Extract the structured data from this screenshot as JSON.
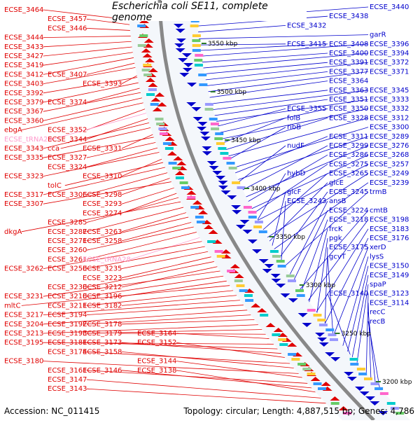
{
  "title": "Escherichia coli SE11, complete genome",
  "footer": {
    "accession": "Accession: NC_011415",
    "summary": "Topology: circular; Length: 4,887,515 bp; Genes: 4,786"
  },
  "colors": {
    "forward": "#e00000",
    "reverse": "#0000cc",
    "trna": "#ff99cc",
    "backbone": "#888888",
    "tick": "#2a7a2a"
  },
  "ticks": [
    "3550 kbp",
    "3500 kbp",
    "3450 kbp",
    "3400 kbp",
    "3350 kbp",
    "3300 kbp",
    "3250 kbp",
    "3200 kbp"
  ],
  "left_labels": [
    {
      "text": "ECSE_3464",
      "kind": "gene",
      "row": 0,
      "col": 0
    },
    {
      "text": "ECSE_3457",
      "kind": "gene",
      "row": 1,
      "col": 1
    },
    {
      "text": "ECSE_3446",
      "kind": "gene",
      "row": 2,
      "col": 1
    },
    {
      "text": "ECSE_3444",
      "kind": "gene",
      "row": 3,
      "col": 0
    },
    {
      "text": "ECSE_3433",
      "kind": "gene",
      "row": 4,
      "col": 0
    },
    {
      "text": "ECSE_3427",
      "kind": "gene",
      "row": 5,
      "col": 0
    },
    {
      "text": "ECSE_3419",
      "kind": "gene",
      "row": 6,
      "col": 0
    },
    {
      "text": "ECSE_3412",
      "kind": "gene",
      "row": 7,
      "col": 0
    },
    {
      "text": "ECSE_3407",
      "kind": "gene",
      "row": 7,
      "col": 1
    },
    {
      "text": "ECSE_3403",
      "kind": "gene",
      "row": 8,
      "col": 0
    },
    {
      "text": "ECSE_3393",
      "kind": "gene",
      "row": 8,
      "col": 2
    },
    {
      "text": "ECSE_3392",
      "kind": "gene",
      "row": 9,
      "col": 0
    },
    {
      "text": "ECSE_3379",
      "kind": "gene",
      "row": 10,
      "col": 0
    },
    {
      "text": "ECSE_3374",
      "kind": "gene",
      "row": 10,
      "col": 1
    },
    {
      "text": "ECSE_3367",
      "kind": "gene",
      "row": 11,
      "col": 0
    },
    {
      "text": "ECSE_3360",
      "kind": "gene",
      "row": 12,
      "col": 0
    },
    {
      "text": "ebgA",
      "kind": "gene",
      "row": 13,
      "col": 0
    },
    {
      "text": "ECSE_3352",
      "kind": "gene",
      "row": 13,
      "col": 1
    },
    {
      "text": "ECSE_tRNA29",
      "kind": "trna",
      "row": 14,
      "col": 0
    },
    {
      "text": "ECSE_3344",
      "kind": "gene",
      "row": 14,
      "col": 1
    },
    {
      "text": "ECSE_3343",
      "kind": "gene",
      "row": 15,
      "col": 0
    },
    {
      "text": "cca",
      "kind": "gene",
      "row": 15,
      "col": 1
    },
    {
      "text": "ECSE_3331",
      "kind": "gene",
      "row": 15,
      "col": 2
    },
    {
      "text": "ECSE_3335",
      "kind": "gene",
      "row": 16,
      "col": 0
    },
    {
      "text": "ECSE_3327",
      "kind": "gene",
      "row": 16,
      "col": 1
    },
    {
      "text": "ECSE_3324",
      "kind": "gene",
      "row": 17,
      "col": 1
    },
    {
      "text": "ECSE_3323",
      "kind": "gene",
      "row": 18,
      "col": 0
    },
    {
      "text": "ECSE_3310",
      "kind": "gene",
      "row": 18,
      "col": 2
    },
    {
      "text": "tolC",
      "kind": "gene",
      "row": 19,
      "col": 1
    },
    {
      "text": "ECSE_3317",
      "kind": "gene",
      "row": 20,
      "col": 0
    },
    {
      "text": "ECSE_3306",
      "kind": "gene",
      "row": 20,
      "col": 1
    },
    {
      "text": "ECSE_3298",
      "kind": "gene",
      "row": 20,
      "col": 2
    },
    {
      "text": "ECSE_3307",
      "kind": "gene",
      "row": 21,
      "col": 0
    },
    {
      "text": "ECSE_3293",
      "kind": "gene",
      "row": 21,
      "col": 2
    },
    {
      "text": "ECSE_3274",
      "kind": "gene",
      "row": 22,
      "col": 2
    },
    {
      "text": "ECSE_3285",
      "kind": "gene",
      "row": 23,
      "col": 1
    },
    {
      "text": "dkgA",
      "kind": "gene",
      "row": 24,
      "col": 0
    },
    {
      "text": "ECSE_3287",
      "kind": "gene",
      "row": 24,
      "col": 1
    },
    {
      "text": "ECSE_3263",
      "kind": "gene",
      "row": 24,
      "col": 2
    },
    {
      "text": "ECSE_3271",
      "kind": "gene",
      "row": 25,
      "col": 1
    },
    {
      "text": "ECSE_3258",
      "kind": "gene",
      "row": 25,
      "col": 2
    },
    {
      "text": "ECSE_3260",
      "kind": "gene",
      "row": 26,
      "col": 1
    },
    {
      "text": "ECSE_3261",
      "kind": "gene",
      "row": 27,
      "col": 1
    },
    {
      "text": "ECSE_tRNA28",
      "kind": "trna",
      "row": 27,
      "col": 2
    },
    {
      "text": "ECSE_3262",
      "kind": "gene",
      "row": 28,
      "col": 0
    },
    {
      "text": "ECSE_3250",
      "kind": "gene",
      "row": 28,
      "col": 1
    },
    {
      "text": "ECSE_3235",
      "kind": "gene",
      "row": 28,
      "col": 2
    },
    {
      "text": "ECSE_3223",
      "kind": "gene",
      "row": 29,
      "col": 2
    },
    {
      "text": "ECSE_3230",
      "kind": "gene",
      "row": 30,
      "col": 1
    },
    {
      "text": "ECSE_3212",
      "kind": "gene",
      "row": 30,
      "col": 2
    },
    {
      "text": "ECSE_3231",
      "kind": "gene",
      "row": 31,
      "col": 0
    },
    {
      "text": "ECSE_3210",
      "kind": "gene",
      "row": 31,
      "col": 1
    },
    {
      "text": "ECSE_3196",
      "kind": "gene",
      "row": 31,
      "col": 2
    },
    {
      "text": "mltC",
      "kind": "gene",
      "row": 32,
      "col": 0
    },
    {
      "text": "ECSE_3211",
      "kind": "gene",
      "row": 32,
      "col": 1
    },
    {
      "text": "ECSE_3182",
      "kind": "gene",
      "row": 32,
      "col": 2
    },
    {
      "text": "ECSE_3217",
      "kind": "gene",
      "row": 33,
      "col": 0
    },
    {
      "text": "ECSE_3194",
      "kind": "gene",
      "row": 33,
      "col": 1
    },
    {
      "text": "ECSE_3204",
      "kind": "gene",
      "row": 34,
      "col": 0
    },
    {
      "text": "ECSE_3192",
      "kind": "gene",
      "row": 34,
      "col": 1
    },
    {
      "text": "ECSE_3178",
      "kind": "gene",
      "row": 34,
      "col": 2
    },
    {
      "text": "ECSE_3213",
      "kind": "gene",
      "row": 35,
      "col": 0
    },
    {
      "text": "ECSE_3193",
      "kind": "gene",
      "row": 35,
      "col": 1
    },
    {
      "text": "ECSE_3179",
      "kind": "gene",
      "row": 35,
      "col": 2
    },
    {
      "text": "ECSE_3164",
      "kind": "gene",
      "row": 35,
      "col": 3
    },
    {
      "text": "ECSE_3195",
      "kind": "gene",
      "row": 36,
      "col": 0
    },
    {
      "text": "ECSE_3181",
      "kind": "gene",
      "row": 36,
      "col": 1
    },
    {
      "text": "ECSE_3173",
      "kind": "gene",
      "row": 36,
      "col": 2
    },
    {
      "text": "ECSE_3152",
      "kind": "gene",
      "row": 36,
      "col": 3
    },
    {
      "text": "ECSE_3174",
      "kind": "gene",
      "row": 37,
      "col": 1
    },
    {
      "text": "ECSE_3158",
      "kind": "gene",
      "row": 37,
      "col": 2
    },
    {
      "text": "ECSE_3180",
      "kind": "gene",
      "row": 38,
      "col": 0
    },
    {
      "text": "ECSE_3144",
      "kind": "gene",
      "row": 38,
      "col": 3
    },
    {
      "text": "ECSE_3161",
      "kind": "gene",
      "row": 39,
      "col": 1
    },
    {
      "text": "ECSE_3146",
      "kind": "gene",
      "row": 39,
      "col": 2
    },
    {
      "text": "ECSE_3138",
      "kind": "gene",
      "row": 39,
      "col": 3
    },
    {
      "text": "ECSE_3147",
      "kind": "gene",
      "row": 40,
      "col": 1
    },
    {
      "text": "ECSE_3143",
      "kind": "gene",
      "row": 41,
      "col": 1
    }
  ],
  "right_labels": [
    {
      "text": "ECSE_3440",
      "kind": "gene",
      "row": 0,
      "col": 2
    },
    {
      "text": "ECSE_3438",
      "kind": "gene",
      "row": 1,
      "col": 1
    },
    {
      "text": "ECSE_3432",
      "kind": "gene",
      "row": 2,
      "col": 0
    },
    {
      "text": "garR",
      "kind": "gene",
      "row": 3,
      "col": 2
    },
    {
      "text": "ECSE_3415",
      "kind": "gene",
      "row": 4,
      "col": 0
    },
    {
      "text": "ECSE_3408",
      "kind": "gene",
      "row": 4,
      "col": 1
    },
    {
      "text": "ECSE_3396",
      "kind": "gene",
      "row": 4,
      "col": 2
    },
    {
      "text": "ECSE_3400",
      "kind": "gene",
      "row": 5,
      "col": 1
    },
    {
      "text": "ECSE_3394",
      "kind": "gene",
      "row": 5,
      "col": 2
    },
    {
      "text": "ECSE_3391",
      "kind": "gene",
      "row": 6,
      "col": 1
    },
    {
      "text": "ECSE_3372",
      "kind": "gene",
      "row": 6,
      "col": 2
    },
    {
      "text": "ECSE_3377",
      "kind": "gene",
      "row": 7,
      "col": 1
    },
    {
      "text": "ECSE_3371",
      "kind": "gene",
      "row": 7,
      "col": 2
    },
    {
      "text": "ECSE_3364",
      "kind": "gene",
      "row": 8,
      "col": 1
    },
    {
      "text": "ECSE_3363",
      "kind": "gene",
      "row": 9,
      "col": 1
    },
    {
      "text": "ECSE_3345",
      "kind": "gene",
      "row": 9,
      "col": 2
    },
    {
      "text": "ECSE_3351",
      "kind": "gene",
      "row": 10,
      "col": 1
    },
    {
      "text": "ECSE_3333",
      "kind": "gene",
      "row": 10,
      "col": 2
    },
    {
      "text": "ECSE_3355",
      "kind": "gene",
      "row": 11,
      "col": 0
    },
    {
      "text": "ECSE_3350",
      "kind": "gene",
      "row": 11,
      "col": 1
    },
    {
      "text": "ECSE_3332",
      "kind": "gene",
      "row": 11,
      "col": 2
    },
    {
      "text": "folB",
      "kind": "gene",
      "row": 12,
      "col": 0
    },
    {
      "text": "ECSE_3328",
      "kind": "gene",
      "row": 12,
      "col": 1
    },
    {
      "text": "ECSE_3312",
      "kind": "gene",
      "row": 12,
      "col": 2
    },
    {
      "text": "ribB",
      "kind": "gene",
      "row": 13,
      "col": 0
    },
    {
      "text": "ECSE_3300",
      "kind": "gene",
      "row": 13,
      "col": 2
    },
    {
      "text": "ECSE_3311",
      "kind": "gene",
      "row": 14,
      "col": 1
    },
    {
      "text": "ECSE_3289",
      "kind": "gene",
      "row": 14,
      "col": 2
    },
    {
      "text": "nudF",
      "kind": "gene",
      "row": 15,
      "col": 0
    },
    {
      "text": "ECSE_3299",
      "kind": "gene",
      "row": 15,
      "col": 1
    },
    {
      "text": "ECSE_3276",
      "kind": "gene",
      "row": 15,
      "col": 2
    },
    {
      "text": "ECSE_3286",
      "kind": "gene",
      "row": 16,
      "col": 1
    },
    {
      "text": "ECSE_3268",
      "kind": "gene",
      "row": 16,
      "col": 2
    },
    {
      "text": "ECSE_3275",
      "kind": "gene",
      "row": 17,
      "col": 1
    },
    {
      "text": "ECSE_3257",
      "kind": "gene",
      "row": 17,
      "col": 2
    },
    {
      "text": "hybD",
      "kind": "gene",
      "row": 18,
      "col": 0
    },
    {
      "text": "ECSE_3265",
      "kind": "gene",
      "row": 18,
      "col": 1
    },
    {
      "text": "ECSE_3249",
      "kind": "gene",
      "row": 18,
      "col": 2
    },
    {
      "text": "glcE",
      "kind": "gene",
      "row": 19,
      "col": 1
    },
    {
      "text": "ECSE_3239",
      "kind": "gene",
      "row": 19,
      "col": 2
    },
    {
      "text": "glcF",
      "kind": "gene",
      "row": 20,
      "col": 0
    },
    {
      "text": "ECSE_3245",
      "kind": "gene",
      "row": 20,
      "col": 1
    },
    {
      "text": "trmB",
      "kind": "gene",
      "row": 20,
      "col": 2
    },
    {
      "text": "ECSE_3243",
      "kind": "gene",
      "row": 21,
      "col": 0
    },
    {
      "text": "ansB",
      "kind": "gene",
      "row": 21,
      "col": 1
    },
    {
      "text": "ECSE_3224",
      "kind": "gene",
      "row": 22,
      "col": 1
    },
    {
      "text": "cmtB",
      "kind": "gene",
      "row": 22,
      "col": 2
    },
    {
      "text": "ECSE_3218",
      "kind": "gene",
      "row": 23,
      "col": 1
    },
    {
      "text": "ECSE_3198",
      "kind": "gene",
      "row": 23,
      "col": 2
    },
    {
      "text": "frcK",
      "kind": "gene",
      "row": 24,
      "col": 1
    },
    {
      "text": "ECSE_3183",
      "kind": "gene",
      "row": 24,
      "col": 2
    },
    {
      "text": "pgk",
      "kind": "gene",
      "row": 25,
      "col": 1
    },
    {
      "text": "ECSE_3176",
      "kind": "gene",
      "row": 25,
      "col": 2
    },
    {
      "text": "ECSE_3175",
      "kind": "gene",
      "row": 26,
      "col": 1
    },
    {
      "text": "xerD",
      "kind": "gene",
      "row": 26,
      "col": 2
    },
    {
      "text": "gcvT",
      "kind": "gene",
      "row": 27,
      "col": 1
    },
    {
      "text": "lysS",
      "kind": "gene",
      "row": 27,
      "col": 2
    },
    {
      "text": "ECSE_3150",
      "kind": "gene",
      "row": 28,
      "col": 2
    },
    {
      "text": "ECSE_3149",
      "kind": "gene",
      "row": 29,
      "col": 2
    },
    {
      "text": "spaP",
      "kind": "gene",
      "row": 30,
      "col": 2
    },
    {
      "text": "ECSE_3140",
      "kind": "gene",
      "row": 31,
      "col": 1
    },
    {
      "text": "ECSE_3123",
      "kind": "gene",
      "row": 31,
      "col": 2
    },
    {
      "text": "ECSE_3114",
      "kind": "gene",
      "row": 32,
      "col": 2
    },
    {
      "text": "recC",
      "kind": "gene",
      "row": 33,
      "col": 2
    },
    {
      "text": "recB",
      "kind": "gene",
      "row": 34,
      "col": 2
    }
  ]
}
